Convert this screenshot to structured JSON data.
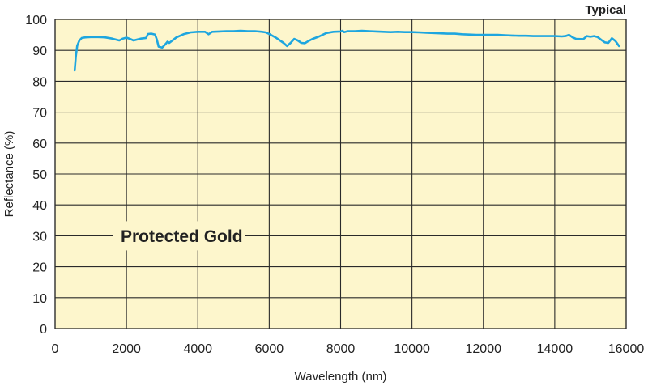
{
  "chart_data": {
    "type": "line",
    "note": "Typical",
    "annotation": "Protected Gold",
    "xlabel": "Wavelength (nm)",
    "ylabel": "Reflectance (%)",
    "xlim": [
      0,
      16000
    ],
    "ylim": [
      0,
      100
    ],
    "xticks": [
      0,
      2000,
      4000,
      6000,
      8000,
      10000,
      12000,
      14000,
      16000
    ],
    "yticks": [
      0,
      10,
      20,
      30,
      40,
      50,
      60,
      70,
      80,
      90,
      100
    ],
    "grid": true,
    "colors": {
      "plot_background": "#fdf6cc",
      "grid": "#2a2a2a",
      "line": "#1ea6df",
      "text": "#222222"
    },
    "series": [
      {
        "x": [
          550,
          580,
          620,
          680,
          750,
          850,
          1000,
          1200,
          1400,
          1600,
          1800,
          1900,
          2000,
          2100,
          2200,
          2400,
          2550,
          2600,
          2700,
          2800,
          2850,
          2900,
          3000,
          3100,
          3150,
          3200,
          3400,
          3600,
          3800,
          4000,
          4200,
          4300,
          4400,
          4600,
          4800,
          5000,
          5200,
          5400,
          5600,
          5800,
          5900,
          6000,
          6200,
          6400,
          6500,
          6600,
          6700,
          6800,
          6900,
          7000,
          7100,
          7200,
          7400,
          7600,
          7800,
          8000,
          8050,
          8100,
          8200,
          8400,
          8600,
          8800,
          9000,
          9200,
          9400,
          9600,
          9800,
          10000,
          10200,
          10400,
          10600,
          10800,
          11000,
          11200,
          11400,
          11600,
          11800,
          12000,
          12200,
          12400,
          12600,
          12800,
          13000,
          13200,
          13400,
          13600,
          13800,
          14000,
          14200,
          14300,
          14400,
          14500,
          14600,
          14800,
          14900,
          15000,
          15100,
          15200,
          15300,
          15400,
          15500,
          15600,
          15700,
          15800
        ],
        "y": [
          83.5,
          88,
          91.5,
          93.2,
          94,
          94.2,
          94.3,
          94.3,
          94.2,
          93.8,
          93.2,
          93.8,
          94.1,
          93.7,
          93.2,
          93.8,
          94,
          95.3,
          95.4,
          95.1,
          93.5,
          91.2,
          90.9,
          92.1,
          92.8,
          92.4,
          94.2,
          95.2,
          95.8,
          96,
          96,
          95.2,
          96,
          96.1,
          96.2,
          96.2,
          96.3,
          96.2,
          96.2,
          96,
          95.8,
          95.3,
          94,
          92.4,
          91.4,
          92.4,
          93.7,
          93.2,
          92.4,
          92.3,
          93,
          93.6,
          94.5,
          95.6,
          96,
          96.1,
          96.3,
          95.9,
          96.2,
          96.2,
          96.3,
          96.2,
          96.1,
          96,
          95.9,
          96,
          95.9,
          95.9,
          95.8,
          95.7,
          95.6,
          95.5,
          95.4,
          95.4,
          95.2,
          95.1,
          95,
          95,
          95,
          95,
          94.9,
          94.8,
          94.7,
          94.7,
          94.6,
          94.6,
          94.6,
          94.6,
          94.5,
          94.6,
          95,
          94.2,
          93.7,
          93.6,
          94.6,
          94.4,
          94.6,
          94.3,
          93.4,
          92.6,
          92.4,
          93.9,
          93,
          91.4
        ]
      }
    ]
  }
}
